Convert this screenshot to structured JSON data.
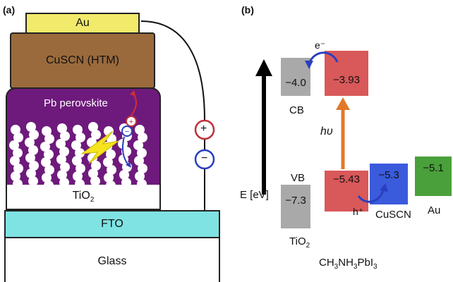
{
  "panel_a": {
    "label": "(a)",
    "layers": {
      "au": "Au",
      "cuscn": "CuSCN (HTM)",
      "perovskite": "Pb perovskite",
      "tio2": "TiO",
      "tio2_sub": "2",
      "fto": "FTO",
      "glass": "Glass"
    },
    "charges": {
      "plus": "+",
      "minus": "−"
    },
    "colors": {
      "au": "#f2ea6b",
      "cuscn": "#9a6a3c",
      "perovskite": "#6e1a7c",
      "fto": "#7fe3e3",
      "circuit_plus": "#c0303a",
      "circuit_minus": "#2a3fbf"
    }
  },
  "panel_b": {
    "label": "(b)",
    "axis_label": "E [eV]",
    "electron": "e⁻",
    "hole": "h⁺",
    "photon": "hυ",
    "cb_label": "CB",
    "vb_label": "VB",
    "levels": {
      "tio2_cb": "−4.0",
      "perov_cb": "−3.93",
      "tio2_vb": "−7.3",
      "perov_vb": "−5.43",
      "cuscn": "−5.3",
      "au": "−5.1"
    },
    "materials": {
      "tio2": "TiO",
      "tio2_sub": "2",
      "perovskite": "CH",
      "perovskite_sub1": "3",
      "perovskite_mid": "NH",
      "perovskite_sub2": "3",
      "perovskite_end": "PbI",
      "perovskite_sub3": "3",
      "cuscn": "CuSCN",
      "au": "Au"
    },
    "colors": {
      "tio2": "#a9a9a9",
      "perovskite": "#d9585a",
      "cuscn": "#3a5bdc",
      "au": "#4aa03a",
      "photon_arrow": "#e07a2a",
      "electron_arrow": "#2a3fbf"
    }
  }
}
